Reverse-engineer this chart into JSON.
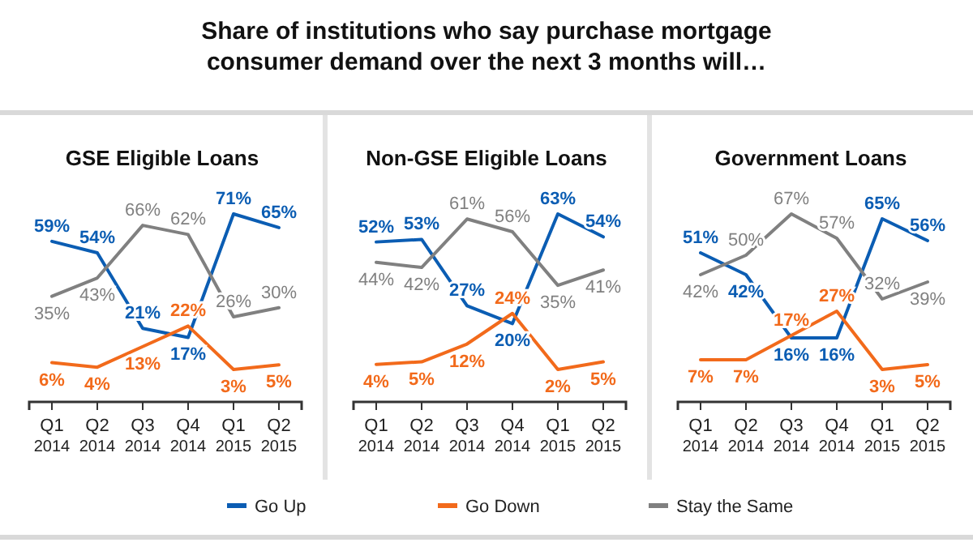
{
  "chart_data": [
    {
      "type": "line",
      "title": "Share of institutions who say purchase mortgage consumer demand over the next 3 months will…",
      "subtitle": "GSE Eligible Loans",
      "categories": [
        "Q1 2014",
        "Q2 2014",
        "Q3 2014",
        "Q4 2014",
        "Q1 2015",
        "Q2 2015"
      ],
      "tick_labels": "x",
      "legend": "bottom",
      "marker": "none",
      "line_style": "solid",
      "series": [
        {
          "name": "Go Up",
          "color": "#0b5db3",
          "values": [
            59,
            54,
            21,
            17,
            71,
            65
          ],
          "value_labels": [
            "59%",
            "54%",
            "21%",
            "17%",
            "71%",
            "65%"
          ]
        },
        {
          "name": "Go Down",
          "color": "#f26a1b",
          "values": [
            6,
            4,
            13,
            22,
            3,
            5
          ],
          "value_labels": [
            "6%",
            "4%",
            "13%",
            "22%",
            "3%",
            "5%"
          ]
        },
        {
          "name": "Stay the Same",
          "color": "#808080",
          "values": [
            35,
            43,
            66,
            62,
            26,
            30
          ],
          "value_labels": [
            "35%",
            "43%",
            "66%",
            "62%",
            "26%",
            "30%"
          ]
        }
      ]
    },
    {
      "type": "line",
      "subtitle": "Non-GSE Eligible Loans",
      "categories": [
        "Q1 2014",
        "Q2 2014",
        "Q3 2014",
        "Q4 2014",
        "Q1 2015",
        "Q2 2015"
      ],
      "tick_labels": "x",
      "marker": "none",
      "line_style": "solid",
      "series": [
        {
          "color": "#0b5db3",
          "values": [
            52,
            53,
            27,
            20,
            63,
            54
          ],
          "value_labels": [
            "52%",
            "53%",
            "27%",
            "20%",
            "63%",
            "54%"
          ]
        },
        {
          "color": "#f26a1b",
          "values": [
            4,
            5,
            12,
            24,
            2,
            5
          ],
          "value_labels": [
            "4%",
            "5%",
            "12%",
            "24%",
            "2%",
            "5%"
          ]
        },
        {
          "color": "#808080",
          "values": [
            44,
            42,
            61,
            56,
            35,
            41
          ],
          "value_labels": [
            "44%",
            "42%",
            "61%",
            "56%",
            "35%",
            "41%"
          ]
        }
      ]
    },
    {
      "type": "line",
      "subtitle": "Government Loans",
      "categories": [
        "Q1 2014",
        "Q2 2014",
        "Q3 2014",
        "Q4 2014",
        "Q1 2015",
        "Q2 2015"
      ],
      "tick_labels": "x",
      "marker": "none",
      "line_style": "solid",
      "series": [
        {
          "color": "#0b5db3",
          "values": [
            51,
            42,
            16,
            16,
            65,
            56
          ],
          "value_labels": [
            "51%",
            "42%",
            "16%",
            "16%",
            "65%",
            "56%"
          ]
        },
        {
          "color": "#f26a1b",
          "values": [
            7,
            7,
            17,
            27,
            3,
            5
          ],
          "value_labels": [
            "7%",
            "7%",
            "17%",
            "27%",
            "3%",
            "5%"
          ]
        },
        {
          "color": "#808080",
          "values": [
            42,
            50,
            67,
            57,
            32,
            39
          ],
          "value_labels": [
            "42%",
            "50%",
            "67%",
            "57%",
            "32%",
            "39%"
          ]
        }
      ]
    }
  ]
}
